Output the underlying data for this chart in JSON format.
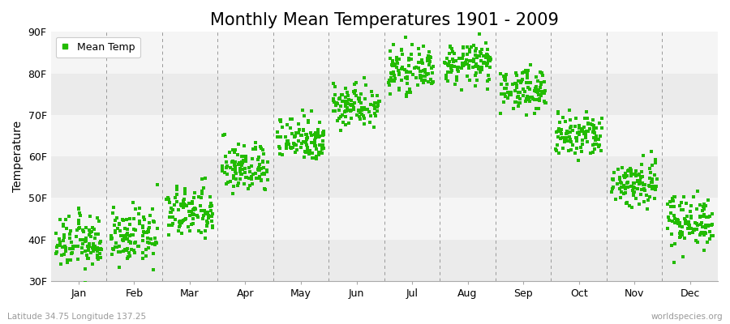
{
  "title": "Monthly Mean Temperatures 1901 - 2009",
  "ylabel": "Temperature",
  "subtitle_left": "Latitude 34.75 Longitude 137.25",
  "subtitle_right": "worldspecies.org",
  "legend_label": "Mean Temp",
  "marker_color": "#22bb00",
  "background_color": "#ffffff",
  "band_color_a": "#ebebeb",
  "band_color_b": "#f5f5f5",
  "ylim": [
    30,
    90
  ],
  "ytick_values": [
    30,
    40,
    50,
    60,
    70,
    80,
    90
  ],
  "ytick_labels": [
    "30F",
    "40F",
    "50F",
    "60F",
    "70F",
    "80F",
    "90F"
  ],
  "months": [
    "Jan",
    "Feb",
    "Mar",
    "Apr",
    "May",
    "Jun",
    "Jul",
    "Aug",
    "Sep",
    "Oct",
    "Nov",
    "Dec"
  ],
  "monthly_mean_F": [
    39.2,
    40.6,
    46.4,
    57.2,
    64.4,
    72.5,
    80.6,
    82.4,
    76.1,
    64.9,
    53.6,
    44.6
  ],
  "monthly_std_F": [
    3.2,
    3.2,
    3.2,
    3.0,
    2.8,
    2.6,
    2.4,
    2.4,
    2.5,
    2.8,
    3.0,
    3.2
  ],
  "n_years": 109,
  "title_fontsize": 15,
  "axis_label_fontsize": 10,
  "tick_fontsize": 9,
  "legend_fontsize": 9
}
